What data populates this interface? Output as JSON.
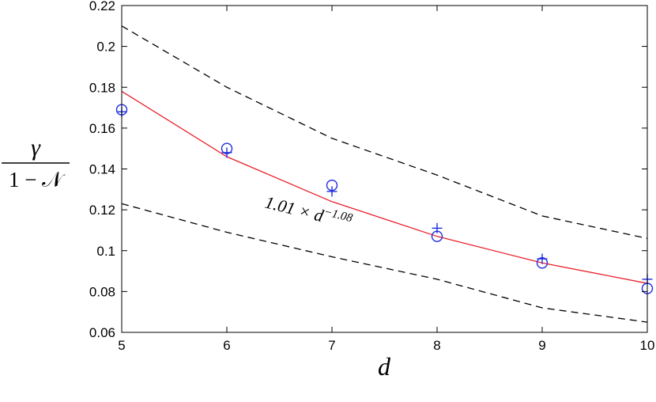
{
  "chart_data": {
    "type": "line",
    "xlabel": "d",
    "ylabel": {
      "numerator": "γ",
      "denominator": "1 − 𝒩"
    },
    "xlim": [
      5,
      10
    ],
    "ylim": [
      0.06,
      0.22
    ],
    "x_ticks": [
      "5",
      "6",
      "7",
      "8",
      "9",
      "10"
    ],
    "y_ticks": [
      "0.06",
      "0.08",
      "0.1",
      "0.12",
      "0.14",
      "0.16",
      "0.18",
      "0.2",
      "0.22"
    ],
    "grid": false,
    "annotation": {
      "prefix": "1.01 × d",
      "exponent": "−1.08"
    },
    "series": [
      {
        "style": "solid",
        "color": "#e8202a",
        "x": [
          5,
          6,
          7,
          8,
          9,
          10
        ],
        "y": [
          0.178,
          0.146,
          0.124,
          0.107,
          0.094,
          0.084
        ]
      },
      {
        "style": "dashed",
        "color": "#000000",
        "x": [
          5,
          6,
          7,
          8,
          9,
          10
        ],
        "y": [
          0.21,
          0.18,
          0.155,
          0.137,
          0.117,
          0.106
        ]
      },
      {
        "style": "dashed",
        "color": "#000000",
        "x": [
          5,
          6,
          7,
          8,
          9,
          10
        ],
        "y": [
          0.123,
          0.109,
          0.097,
          0.086,
          0.072,
          0.065
        ]
      },
      {
        "style": "marker-circle",
        "color": "#1f2de0",
        "x": [
          5,
          6,
          7,
          8,
          9,
          10
        ],
        "y": [
          0.169,
          0.15,
          0.132,
          0.107,
          0.094,
          0.0815
        ]
      },
      {
        "style": "marker-plus",
        "color": "#1f2de0",
        "x": [
          5,
          6,
          7,
          8,
          9,
          10
        ],
        "y": [
          0.168,
          0.148,
          0.129,
          0.111,
          0.096,
          0.086
        ]
      }
    ]
  }
}
